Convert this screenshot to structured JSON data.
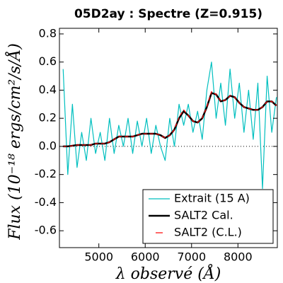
{
  "chart_data": {
    "type": "line",
    "title": "05D2ay : Spectre (Z=0.915)",
    "x_label": "λ observé (Å)",
    "y_label": "Flux (10⁻¹⁸ ergs/cm²/s/Å)",
    "xlim": [
      4150,
      8850
    ],
    "ylim": [
      -0.72,
      0.84
    ],
    "xticks": [
      5000,
      6000,
      7000,
      8000
    ],
    "yticks": [
      -0.6,
      -0.4,
      -0.2,
      {
        "value": 0,
        "label": "0.0"
      },
      0.2,
      0.4,
      0.6,
      0.8
    ],
    "zero_line": true,
    "legend": "lower right",
    "x": [
      4230,
      4330,
      4430,
      4530,
      4630,
      4730,
      4830,
      4930,
      5030,
      5130,
      5230,
      5330,
      5430,
      5530,
      5630,
      5730,
      5830,
      5930,
      6030,
      6130,
      6230,
      6330,
      6430,
      6530,
      6630,
      6730,
      6830,
      6930,
      7030,
      7130,
      7230,
      7330,
      7430,
      7530,
      7630,
      7730,
      7830,
      7930,
      8030,
      8130,
      8230,
      8330,
      8430,
      8530,
      8630,
      8730,
      8830
    ],
    "series": [
      {
        "name": "Extrait (15 A)",
        "color": "#00bfbf",
        "dash": false,
        "width": 1.2,
        "values": [
          0.55,
          -0.2,
          0.3,
          -0.15,
          0.1,
          -0.1,
          0.2,
          -0.05,
          0.1,
          -0.1,
          0.2,
          -0.05,
          0.15,
          0.0,
          0.2,
          -0.05,
          0.18,
          0.0,
          0.2,
          -0.05,
          0.15,
          0.0,
          -0.1,
          0.2,
          0.0,
          0.3,
          0.15,
          0.3,
          0.1,
          0.25,
          0.05,
          0.4,
          0.6,
          0.2,
          0.45,
          0.15,
          0.55,
          0.2,
          0.45,
          0.1,
          0.4,
          0.05,
          0.45,
          -0.3,
          0.5,
          0.1,
          0.35
        ]
      },
      {
        "name": "SALT2 Cal.",
        "color": "#000000",
        "dash": false,
        "width": 2.5,
        "values": [
          0.0,
          0.0,
          0.005,
          0.01,
          0.01,
          0.01,
          0.01,
          0.02,
          0.02,
          0.02,
          0.03,
          0.05,
          0.07,
          0.07,
          0.07,
          0.07,
          0.08,
          0.09,
          0.09,
          0.09,
          0.09,
          0.08,
          0.06,
          0.08,
          0.12,
          0.2,
          0.25,
          0.22,
          0.18,
          0.17,
          0.2,
          0.28,
          0.38,
          0.37,
          0.32,
          0.33,
          0.36,
          0.35,
          0.31,
          0.28,
          0.27,
          0.26,
          0.26,
          0.28,
          0.32,
          0.32,
          0.29
        ]
      },
      {
        "name": "SALT2 (C.L.)",
        "color": "#ff0000",
        "dash": true,
        "width": 1.2,
        "values": [
          0.0,
          0.0,
          0.005,
          0.01,
          0.01,
          0.01,
          0.01,
          0.02,
          0.02,
          0.02,
          0.03,
          0.05,
          0.07,
          0.07,
          0.07,
          0.07,
          0.08,
          0.09,
          0.09,
          0.09,
          0.09,
          0.08,
          0.06,
          0.08,
          0.12,
          0.21,
          0.26,
          0.22,
          0.18,
          0.17,
          0.2,
          0.28,
          0.39,
          0.37,
          0.32,
          0.33,
          0.36,
          0.35,
          0.31,
          0.28,
          0.27,
          0.26,
          0.26,
          0.28,
          0.32,
          0.32,
          0.29
        ]
      }
    ]
  }
}
